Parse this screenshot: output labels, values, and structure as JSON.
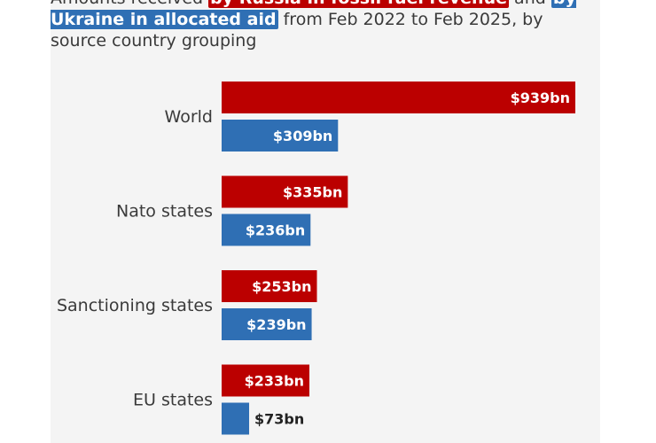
{
  "subtitle": {
    "prefix": "Amounts received",
    "russia_term": "by Russia in fossil fuel revenue",
    "and": "and",
    "ukraine_term": "by Ukraine in allocated aid",
    "suffix": "from Feb 2022 to Feb 2025, by source country grouping"
  },
  "colors": {
    "russia": "#bb0000",
    "ukraine": "#2f6fb4",
    "label_inside": "#ffffff",
    "label_outside": "#222222"
  },
  "chart_data": {
    "type": "bar",
    "orientation": "horizontal",
    "title": "",
    "xlabel": "",
    "ylabel": "",
    "grid": false,
    "xlim": [
      0,
      939
    ],
    "categories": [
      "World",
      "Nato states",
      "Sanctioning states",
      "EU states"
    ],
    "series": [
      {
        "values": [
          939,
          335,
          253,
          233
        ],
        "labels": [
          "$939bn",
          "$335bn",
          "$253bn",
          "$233bn"
        ]
      },
      {
        "values": [
          309,
          236,
          239,
          73
        ],
        "labels": [
          "$309bn",
          "$236bn",
          "$239bn",
          "$73bn"
        ]
      }
    ]
  }
}
